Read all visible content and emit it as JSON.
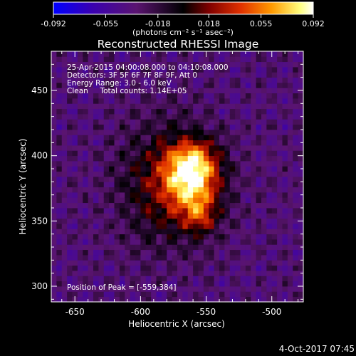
{
  "chart_data": {
    "type": "heatmap",
    "title": "Reconstructed RHESSI Image",
    "xlabel": "Heliocentric X (arcsec)",
    "ylabel": "Heliocentric Y (arcsec)",
    "xlim": [
      -668,
      -476
    ],
    "ylim": [
      288,
      480
    ],
    "x_ticks": [
      -650,
      -600,
      -550,
      -500
    ],
    "y_ticks": [
      300,
      350,
      400,
      450
    ],
    "x_tick_labels": [
      "-650",
      "-600",
      "-550",
      "-500"
    ],
    "y_tick_labels": [
      "300",
      "350",
      "400",
      "450"
    ],
    "colorbar": {
      "range": [
        -0.092,
        0.092
      ],
      "tick_labels": [
        "-0.092",
        "-0.055",
        "-0.018",
        "0.018",
        "0.055",
        "0.092"
      ],
      "units": "(photons cm⁻² s⁻¹ asec⁻²)",
      "colors": [
        "#0000ff",
        "#3a00b0",
        "#5a1470",
        "#000000",
        "#800000",
        "#e03000",
        "#ff9a00",
        "#ffff80",
        "#ffffff"
      ]
    },
    "annotations": {
      "time_range": "25-Apr-2015 04:00:08.000 to 04:10:08.000",
      "detectors": "Detectors: 3F 5F 6F 7F 8F 9F, Att 0",
      "energy": "Energy Range: 3.0 - 6.0 keV",
      "method": "Clean     Total counts: 1.14E+05",
      "peak": "Position of Peak = [-559,384]"
    },
    "peak_position": [
      -559,
      384
    ],
    "sources": [
      {
        "x": -561,
        "y": 384,
        "sigma_x": 14,
        "sigma_y": 16,
        "amplitude": 0.092
      },
      {
        "x": -555,
        "y": 355,
        "sigma_x": 9,
        "sigma_y": 10,
        "amplitude": 0.045
      },
      {
        "x": -578,
        "y": 378,
        "sigma_x": 26,
        "sigma_y": 32,
        "amplitude": 0.05
      },
      {
        "x": -560,
        "y": 398,
        "sigma_x": 12,
        "sigma_y": 10,
        "amplitude": 0.03
      }
    ],
    "background_level": -0.035
  },
  "footer": {
    "date": "4-Oct-2017 07:45"
  }
}
